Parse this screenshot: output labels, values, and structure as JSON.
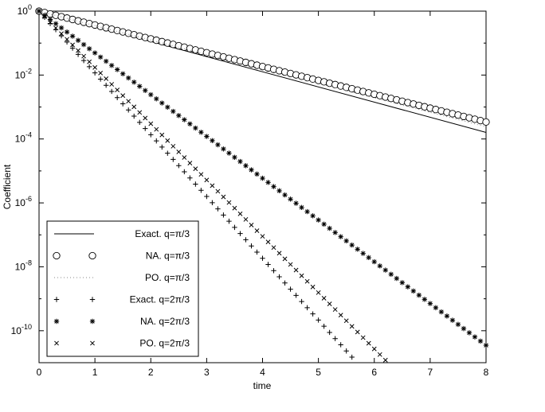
{
  "chart_data": {
    "type": "scatter",
    "title": "",
    "xlabel": "time",
    "ylabel": "Coefficient",
    "xlim": [
      0,
      8
    ],
    "ylim_log10": [
      -11,
      0
    ],
    "y_scale": "log",
    "x_ticks": [
      0,
      1,
      2,
      3,
      4,
      5,
      6,
      7,
      8
    ],
    "y_ticks": [
      {
        "exp": 0,
        "base": "10",
        "power": "0"
      },
      {
        "exp": -2,
        "base": "10",
        "power": "-2"
      },
      {
        "exp": -4,
        "base": "10",
        "power": "-4"
      },
      {
        "exp": -6,
        "base": "10",
        "power": "-6"
      },
      {
        "exp": -8,
        "base": "10",
        "power": "-8"
      },
      {
        "exp": -10,
        "base": "10",
        "power": "-10"
      }
    ],
    "grid": false,
    "legend_position": "bottom-left",
    "series": [
      {
        "name": "Exact. q=π/3",
        "style": "line",
        "color": "#000000",
        "points": [
          [
            0,
            1
          ],
          [
            8,
            0.00016
          ]
        ]
      },
      {
        "name": "NA. q=π/3",
        "style": "circle",
        "color": "#000000",
        "points": [
          [
            0,
            1
          ],
          [
            8,
            0.00034
          ]
        ]
      },
      {
        "name": "PO. q=π/3",
        "style": "dotted",
        "color": "#888888",
        "points": [
          [
            0,
            1
          ],
          [
            8,
            0.00024
          ]
        ]
      },
      {
        "name": "Exact. q=2π/3",
        "style": "plus",
        "color": "#000000",
        "points": [
          [
            0,
            1
          ],
          [
            5.74,
            8e-12
          ]
        ]
      },
      {
        "name": "NA. q=2π/3",
        "style": "star",
        "color": "#000000",
        "points": [
          [
            0,
            1
          ],
          [
            8,
            3.5e-11
          ]
        ]
      },
      {
        "name": "PO. q=2π/3",
        "style": "cross",
        "color": "#000000",
        "points": [
          [
            0,
            1
          ],
          [
            6.3,
            8e-12
          ]
        ]
      }
    ]
  }
}
